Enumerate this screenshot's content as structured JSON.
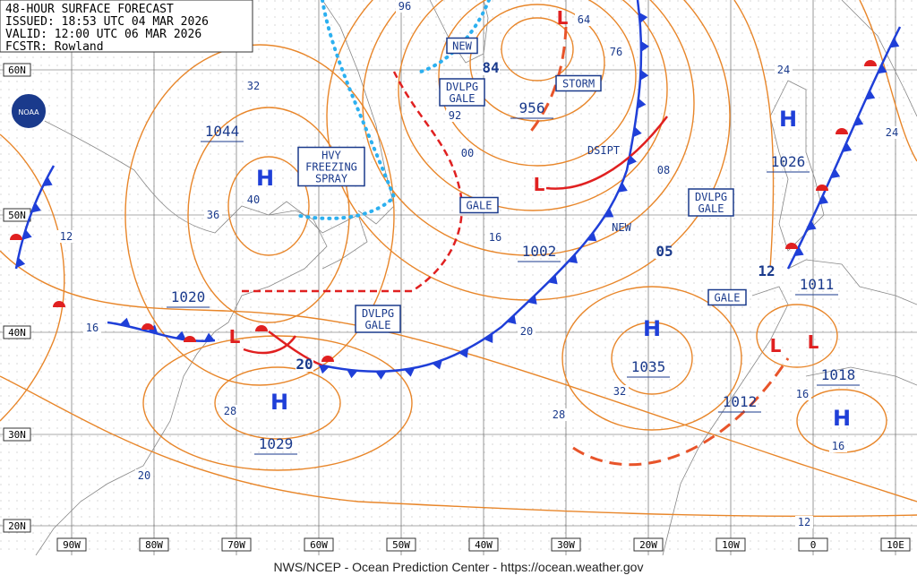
{
  "header": {
    "title": "48-HOUR SURFACE FORECAST",
    "issued": "ISSUED: 18:53 UTC 04 MAR 2026",
    "valid": "VALID: 12:00 UTC 06 MAR 2026",
    "forecaster": "FCSTR: Rowland"
  },
  "logo": "NOAA",
  "footer": "NWS/NCEP - Ocean Prediction Center - https://ocean.weather.gov",
  "latitude_labels": [
    "60N",
    "50N",
    "40N",
    "30N",
    "20N"
  ],
  "longitude_labels": [
    "90W",
    "80W",
    "70W",
    "60W",
    "50W",
    "40W",
    "30W",
    "20W",
    "10W",
    "0",
    "10E"
  ],
  "pressure_centers": [
    {
      "symbol": "H",
      "pressure": "1044"
    },
    {
      "symbol": "H",
      "pressure": "1029"
    },
    {
      "symbol": "H",
      "pressure": "1035"
    },
    {
      "symbol": "H",
      "pressure": "1026"
    },
    {
      "symbol": "H",
      "pressure": "1018"
    },
    {
      "symbol": "L",
      "pressure": "956"
    },
    {
      "symbol": "L",
      "pressure": "1002"
    },
    {
      "symbol": "L",
      "pressure": "1020"
    },
    {
      "symbol": "L",
      "pressure": "1011"
    },
    {
      "symbol": "L",
      "pressure": "1012"
    }
  ],
  "isobar_labels": [
    "96",
    "64",
    "76",
    "84",
    "92",
    "00",
    "08",
    "16",
    "24",
    "24",
    "32",
    "40",
    "36",
    "12",
    "16",
    "20",
    "20",
    "05",
    "28",
    "32",
    "28",
    "20",
    "16",
    "16",
    "12",
    "12"
  ],
  "boxes": [
    {
      "lines": [
        "HVY",
        "FREEZING",
        "SPRAY"
      ]
    },
    {
      "lines": [
        "DVLPG",
        "GALE"
      ]
    },
    {
      "lines": [
        "DVLPG",
        "GALE"
      ]
    },
    {
      "lines": [
        "DVLPG",
        "GALE"
      ]
    },
    {
      "lines": [
        "GALE"
      ]
    },
    {
      "lines": [
        "GALE"
      ]
    },
    {
      "lines": [
        "STORM"
      ]
    },
    {
      "lines": [
        "NEW"
      ]
    }
  ],
  "annotations": [
    "NEW",
    "DSIPT"
  ]
}
